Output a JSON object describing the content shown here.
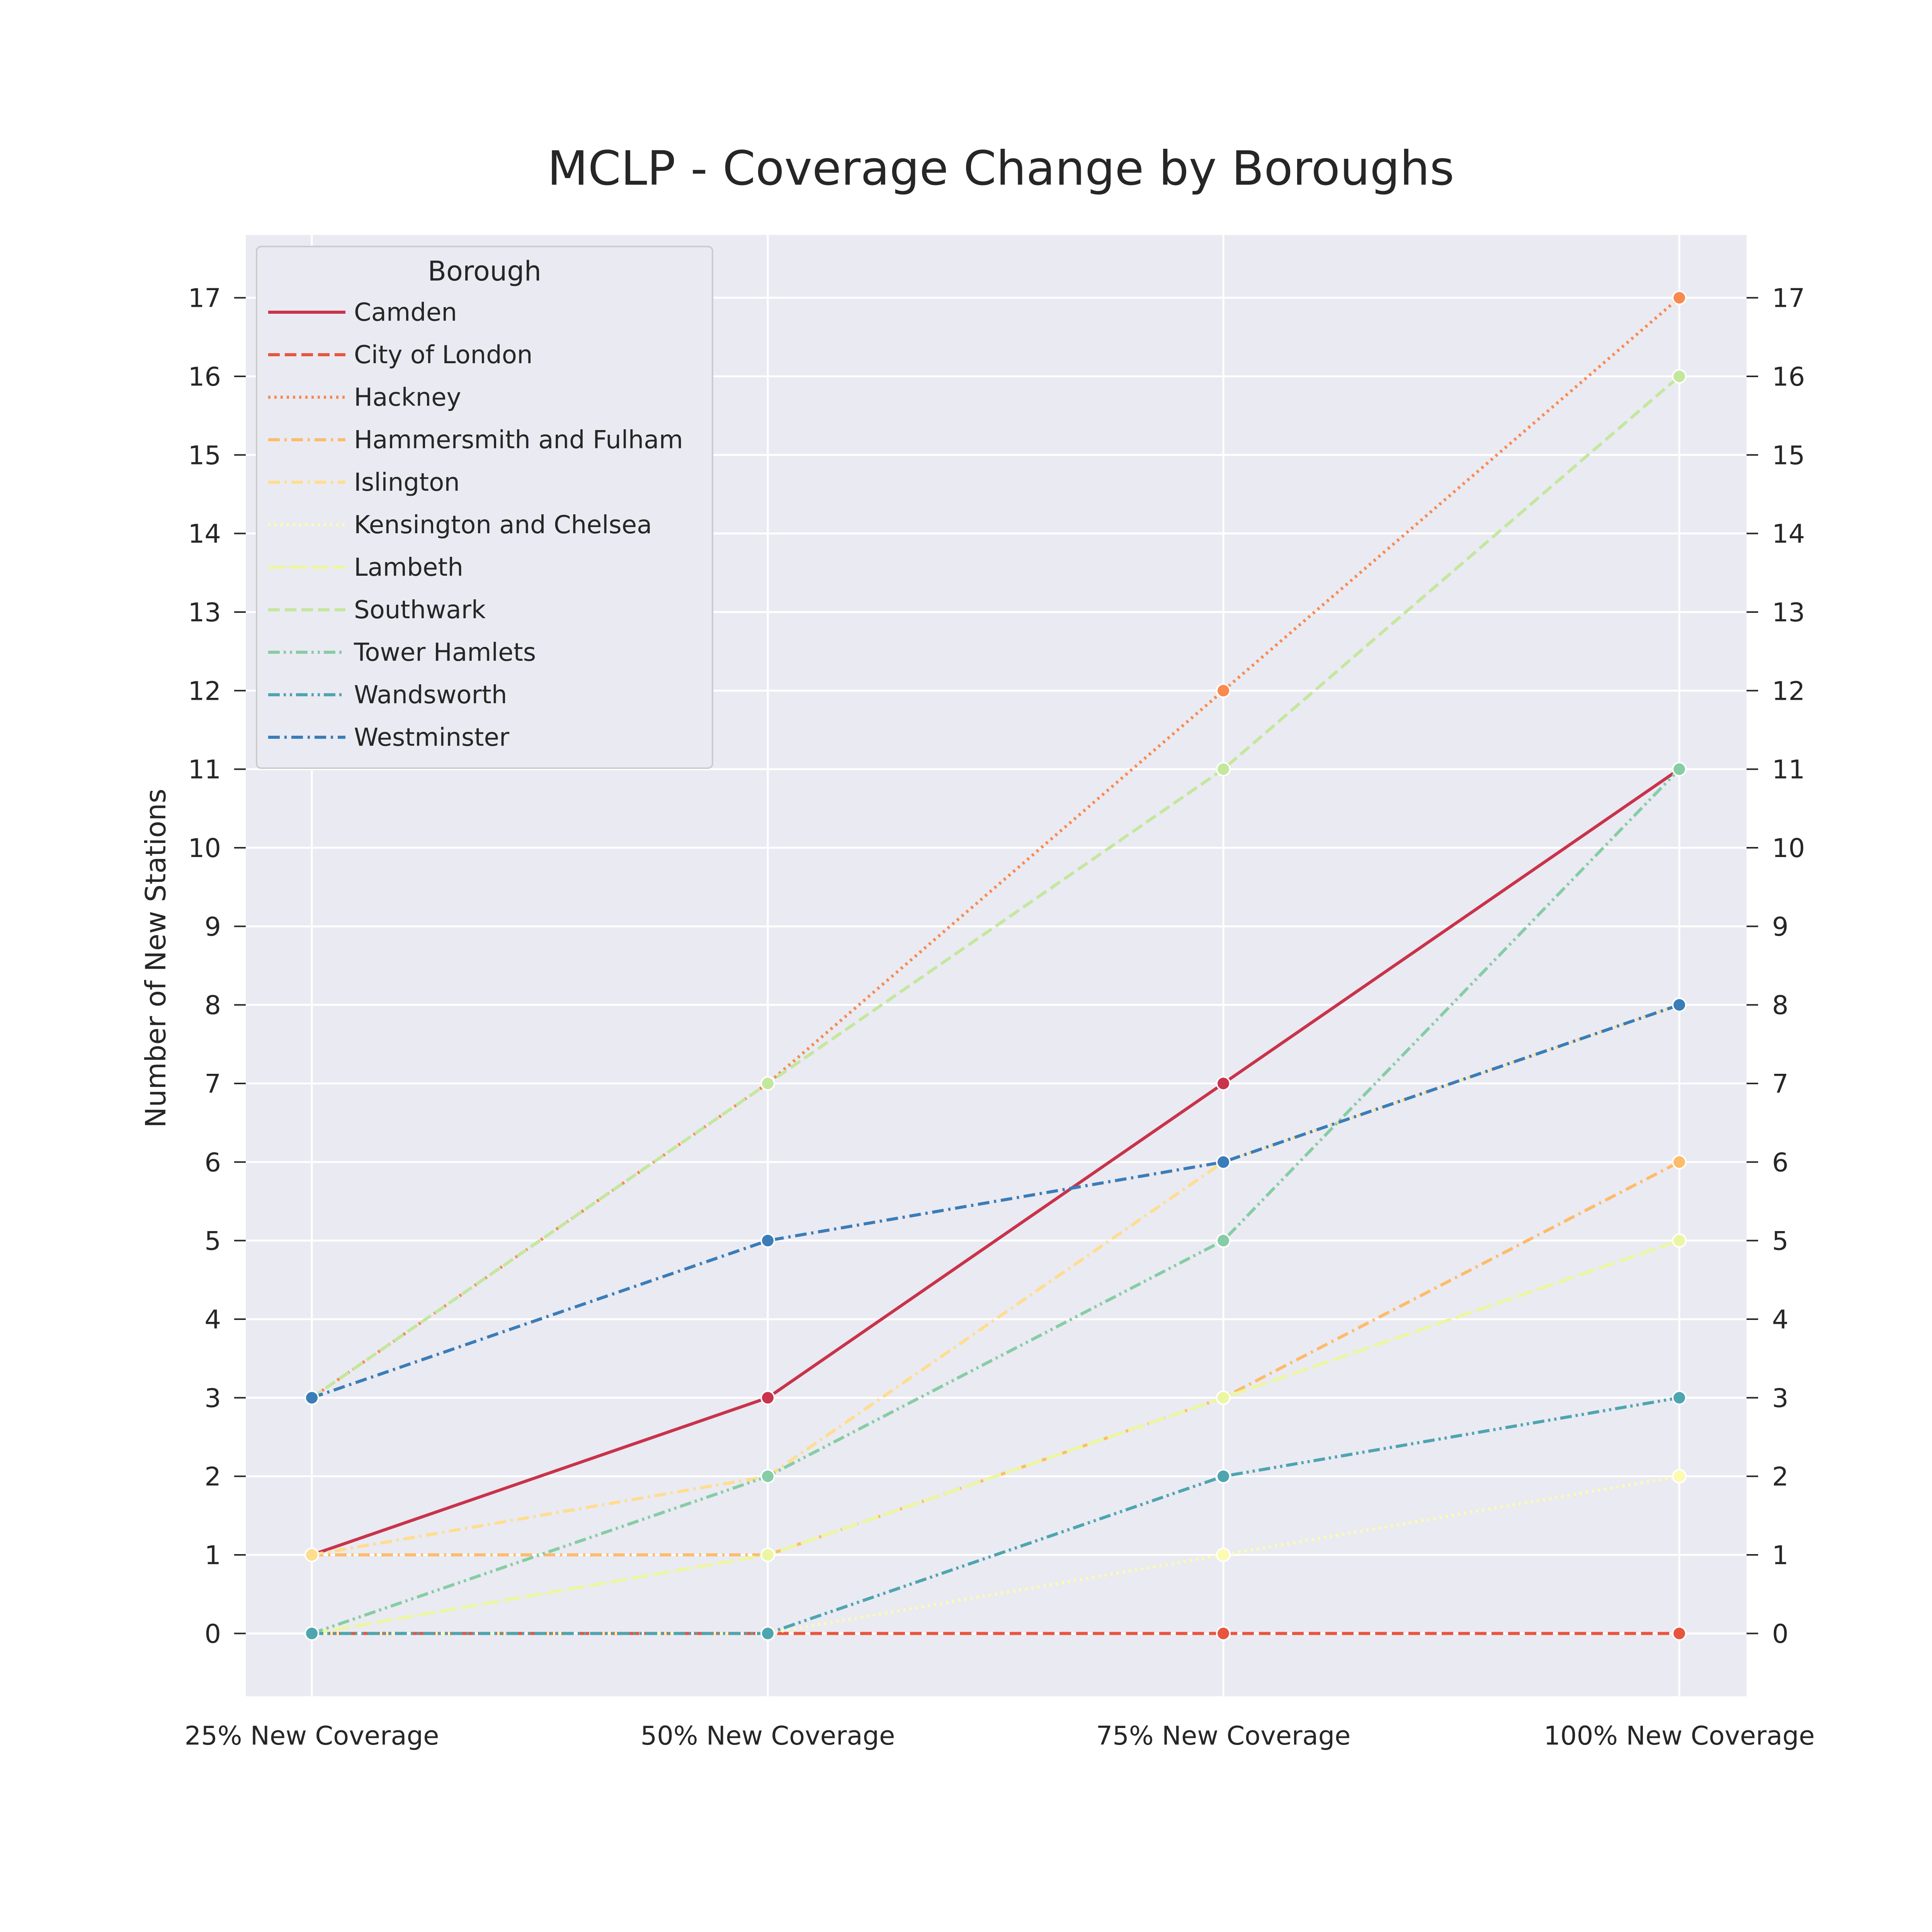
{
  "chart_data": {
    "type": "line",
    "title": "MCLP - Coverage Change by Boroughs",
    "xlabel": "",
    "ylabel": "Number of New Stations",
    "categories": [
      "25% New Coverage",
      "50% New Coverage",
      "75% New Coverage",
      "100% New Coverage"
    ],
    "ylim": [
      -0.8,
      17.8
    ],
    "yticks": [
      0,
      1,
      2,
      3,
      4,
      5,
      6,
      7,
      8,
      9,
      10,
      11,
      12,
      13,
      14,
      15,
      16,
      17
    ],
    "grid": true,
    "right_axis_ticks": true,
    "legend": {
      "title": "Borough",
      "placement": "top-left"
    },
    "series": [
      {
        "name": "Camden",
        "values": [
          1,
          3,
          7,
          11
        ],
        "color": "#c9334b",
        "dash": "solid"
      },
      {
        "name": "City of London",
        "values": [
          0,
          0,
          0,
          0
        ],
        "color": "#e8553f",
        "dash": "dashed"
      },
      {
        "name": "Hackney",
        "values": [
          3,
          7,
          12,
          17
        ],
        "color": "#f88a4f",
        "dash": "dotted"
      },
      {
        "name": "Hammersmith and Fulham",
        "values": [
          1,
          1,
          3,
          6
        ],
        "color": "#fdbc6a",
        "dash": "dashdot"
      },
      {
        "name": "Islington",
        "values": [
          1,
          2,
          6,
          8
        ],
        "color": "#fedd8e",
        "dash": "dashdot"
      },
      {
        "name": "Kensington and Chelsea",
        "values": [
          0,
          0,
          1,
          2
        ],
        "color": "#fcfbb2",
        "dash": "dotted"
      },
      {
        "name": "Lambeth",
        "values": [
          0,
          1,
          3,
          5
        ],
        "color": "#ecf6a2",
        "dash": "longdash"
      },
      {
        "name": "Southwark",
        "values": [
          3,
          7,
          11,
          16
        ],
        "color": "#c4e79e",
        "dash": "dashed"
      },
      {
        "name": "Tower Hamlets",
        "values": [
          0,
          2,
          5,
          11
        ],
        "color": "#86cda6",
        "dash": "dashdotdot"
      },
      {
        "name": "Wandsworth",
        "values": [
          0,
          0,
          2,
          3
        ],
        "color": "#4ea5b0",
        "dash": "dashdotdot"
      },
      {
        "name": "Westminster",
        "values": [
          3,
          5,
          6,
          8
        ],
        "color": "#3a7db8",
        "dash": "dashdot"
      }
    ]
  }
}
